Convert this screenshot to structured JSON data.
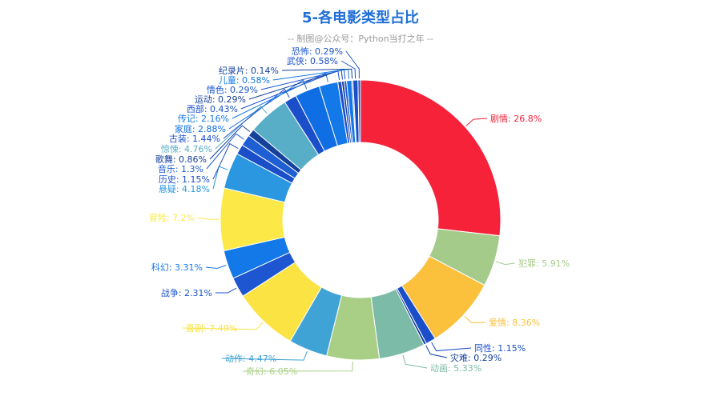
{
  "chart_data": {
    "type": "pie",
    "title": "5-各电影类型占比",
    "subtitle": "-- 制图@公众号：Python当打之年 --",
    "colors": {
      "title": "#1f6fd6",
      "subtitle": "#9a9a9a"
    },
    "slices": [
      {
        "label": "剧情: 26.8%",
        "value": 26.8,
        "color": "#f5223a"
      },
      {
        "label": "犯罪: 5.91%",
        "value": 5.91,
        "color": "#a5cb8b"
      },
      {
        "label": "爱情: 8.36%",
        "value": 8.36,
        "color": "#fbc03c"
      },
      {
        "label": "同性: 1.15%",
        "value": 1.15,
        "color": "#1a4fc9"
      },
      {
        "label": "灾难: 0.29%",
        "value": 0.29,
        "color": "#15419b"
      },
      {
        "label": "动画: 5.33%",
        "value": 5.33,
        "color": "#7cbba7"
      },
      {
        "label": "奇幻: 6.05%",
        "value": 6.05,
        "color": "#a9cf86"
      },
      {
        "label": "动作: 4.47%",
        "value": 4.47,
        "color": "#3fa3d5"
      },
      {
        "label": "喜剧: 7.49%",
        "value": 7.49,
        "color": "#fbe343"
      },
      {
        "label": "战争: 2.31%",
        "value": 2.31,
        "color": "#1d56d0"
      },
      {
        "label": "科幻: 3.31%",
        "value": 3.31,
        "color": "#1479e8"
      },
      {
        "label": "冒险: 7.2%",
        "value": 7.2,
        "color": "#fce847"
      },
      {
        "label": "悬疑: 4.18%",
        "value": 4.18,
        "color": "#2a97e0"
      },
      {
        "label": "历史: 1.15%",
        "value": 1.15,
        "color": "#1a4fc9"
      },
      {
        "label": "音乐: 1.3%",
        "value": 1.3,
        "color": "#1f5fd4"
      },
      {
        "label": "歌舞: 0.86%",
        "value": 0.86,
        "color": "#15419b"
      },
      {
        "label": "惊悚: 4.76%",
        "value": 4.76,
        "color": "#57aec6"
      },
      {
        "label": "古装: 1.44%",
        "value": 1.44,
        "color": "#1a4fc9"
      },
      {
        "label": "家庭: 2.88%",
        "value": 2.88,
        "color": "#0f6ee3"
      },
      {
        "label": "传记: 2.16%",
        "value": 2.16,
        "color": "#1479e8"
      },
      {
        "label": "西部: 0.43%",
        "value": 0.43,
        "color": "#1a4fc9"
      },
      {
        "label": "运动: 0.29%",
        "value": 0.29,
        "color": "#15419b"
      },
      {
        "label": "情色: 0.29%",
        "value": 0.29,
        "color": "#1d56d0"
      },
      {
        "label": "儿童: 0.58%",
        "value": 0.58,
        "color": "#1479e8"
      },
      {
        "label": "纪录片: 0.14%",
        "value": 0.14,
        "color": "#15419b"
      },
      {
        "label": "武侠: 0.58%",
        "value": 0.58,
        "color": "#1a4fc9"
      },
      {
        "label": "恐怖: 0.29%",
        "value": 0.29,
        "color": "#1d56d0"
      }
    ]
  }
}
